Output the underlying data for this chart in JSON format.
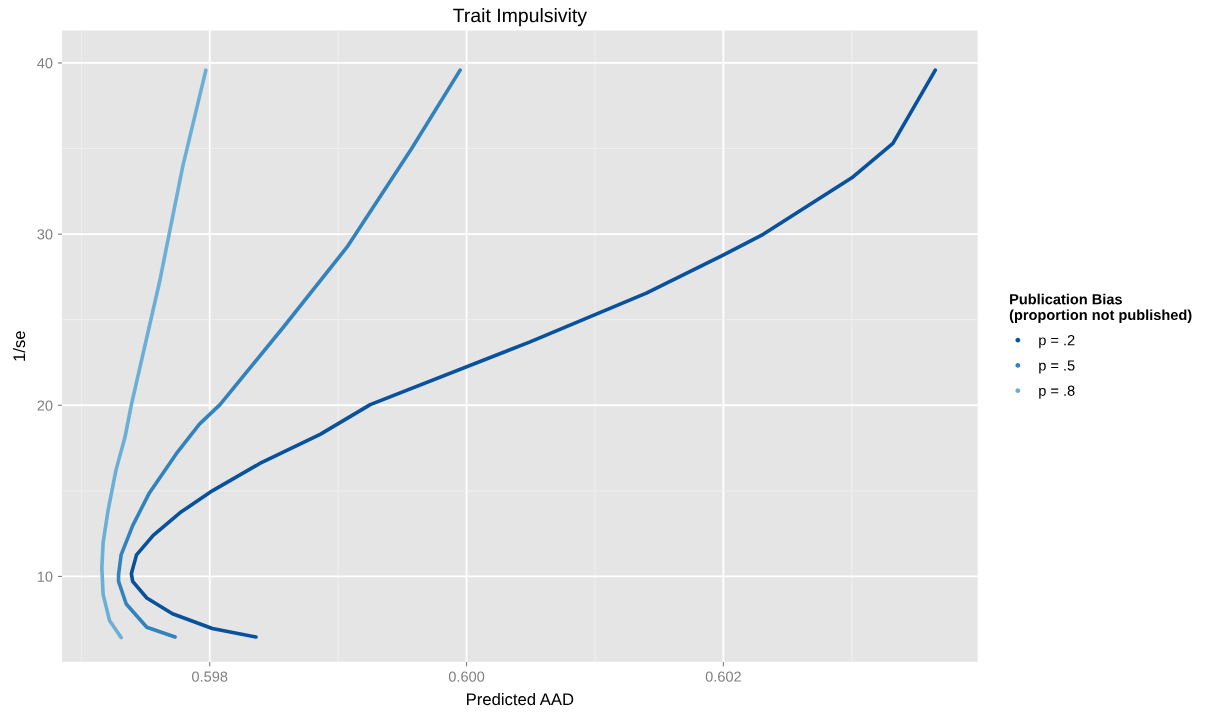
{
  "chart_data": {
    "type": "line",
    "title": "Trait Impulsivity",
    "xlabel": "Predicted AAD",
    "ylabel": "1/se",
    "legend_title": "Publication Bias\n(proportion not published)",
    "legend": "right",
    "grid": true,
    "marker": "none",
    "line_style": "solid",
    "xlim": [
      0.59685,
      0.60398
    ],
    "ylim": [
      5.0,
      41.9
    ],
    "xticks": [
      {
        "value": 0.598,
        "label": "0.598"
      },
      {
        "value": 0.6,
        "label": "0.600"
      },
      {
        "value": 0.602,
        "label": "0.602"
      }
    ],
    "yticks": [
      10,
      20,
      30,
      40
    ],
    "series": [
      {
        "name": "p = .2",
        "color": "#08519c",
        "x": [
          0.59836,
          0.59802,
          0.59771,
          0.59751,
          0.5974,
          0.59739,
          0.59743,
          0.59756,
          0.59777,
          0.59802,
          0.59839,
          0.59886,
          0.59925,
          0.60049,
          0.6014,
          0.60199,
          0.60231,
          0.603,
          0.60332,
          0.60365
        ],
        "values": [
          6.46,
          6.96,
          7.82,
          8.74,
          9.71,
          10.17,
          11.26,
          12.4,
          13.73,
          15.0,
          16.6,
          18.3,
          20.04,
          23.69,
          26.55,
          28.74,
          29.99,
          33.29,
          35.3,
          39.58
        ]
      },
      {
        "name": "p = .5",
        "color": "#3182bd",
        "x": [
          0.59773,
          0.59751,
          0.59735,
          0.59729,
          0.59729,
          0.59731,
          0.5974,
          0.59753,
          0.59774,
          0.59792,
          0.59808,
          0.59857,
          0.59907,
          0.59957,
          0.59995
        ],
        "values": [
          6.46,
          7.03,
          8.39,
          9.71,
          10.1,
          11.26,
          12.97,
          14.88,
          17.17,
          18.9,
          20.04,
          24.53,
          29.25,
          34.97,
          39.58
        ]
      },
      {
        "name": "p = .8",
        "color": "#6baed6",
        "x": [
          0.59731,
          0.59722,
          0.59717,
          0.59716,
          0.59717,
          0.59721,
          0.59727,
          0.59734,
          0.59739,
          0.59761,
          0.59779,
          0.59797
        ],
        "values": [
          6.43,
          7.42,
          8.95,
          10.48,
          12.0,
          13.92,
          16.21,
          18.13,
          20.04,
          27.23,
          33.96,
          39.58
        ]
      }
    ]
  }
}
